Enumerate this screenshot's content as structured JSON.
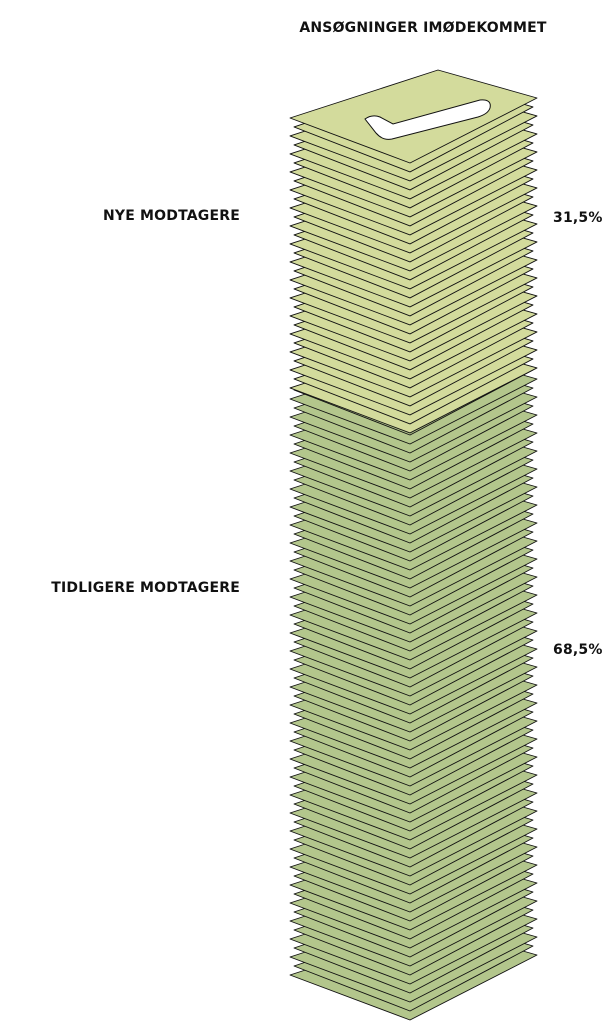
{
  "chart_data": {
    "type": "paper-stack",
    "title": "ANSØGNINGER IMØDEKOMMET",
    "series": [
      {
        "name": "NYE MODTAGERE",
        "color": "#d3db9c",
        "values": [
          31.5
        ],
        "value_labels": [
          "31,5%"
        ]
      },
      {
        "name": "TIDLIGERE MODTAGERE",
        "color": "#b3c68c",
        "values": [
          68.5
        ],
        "value_labels": [
          "68,5%"
        ]
      }
    ]
  }
}
